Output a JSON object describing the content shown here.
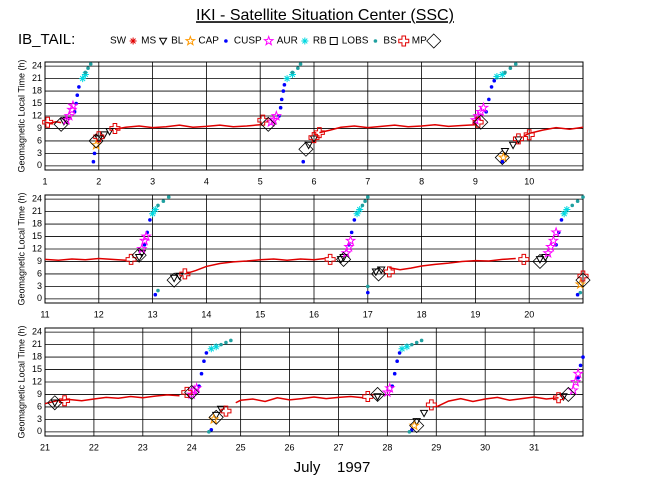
{
  "title": "IKI - Satellite Situation Center (SSC)",
  "subtitle": "IB_TAIL:",
  "xlabel": "July    1997",
  "legend": [
    {
      "name": "SW",
      "color": "#e00000",
      "marker": "asterisk",
      "line": true
    },
    {
      "name": "MS",
      "color": "#000000",
      "marker": "triangle"
    },
    {
      "name": "BL",
      "color": "#ff9900",
      "marker": "star"
    },
    {
      "name": "CAP",
      "color": "#0000ff",
      "marker": "dot"
    },
    {
      "name": "CUSP",
      "color": "#ff00ff",
      "marker": "star"
    },
    {
      "name": "AUR",
      "color": "#00d8e0",
      "marker": "asterisk"
    },
    {
      "name": "RB",
      "color": "#000000",
      "marker": "square"
    },
    {
      "name": "LOBS",
      "color": "#20a0a0",
      "marker": "dot"
    },
    {
      "name": "BS",
      "color": "#e00000",
      "marker": "cross"
    },
    {
      "name": "MP",
      "color": "#000000",
      "marker": "diamond"
    }
  ],
  "chart_data": [
    {
      "type": "scatter",
      "ylabel": "Geomagnetic Local Time (h)",
      "xlim": [
        1,
        11
      ],
      "xticks": [
        1,
        2,
        3,
        4,
        5,
        6,
        7,
        8,
        9,
        10
      ],
      "ylim": [
        -1,
        25
      ],
      "yticks": [
        0,
        3,
        6,
        9,
        12,
        15,
        18,
        21,
        24
      ],
      "grid": true,
      "series": [
        {
          "x": [
            1.0,
            1.1,
            1.2,
            1.3,
            null,
            2.3,
            2.5,
            2.75,
            3.0,
            3.25,
            3.5,
            3.75,
            4.0,
            4.25,
            4.5,
            4.75,
            5.0,
            null,
            6.1,
            6.3,
            6.5,
            6.75,
            7.0,
            7.25,
            7.5,
            7.75,
            8.0,
            8.25,
            8.5,
            8.75,
            9.0,
            null,
            9.9,
            10.0,
            10.25,
            10.5,
            10.75,
            11.0
          ],
          "values": [
            10.5,
            10.3,
            10.6,
            10.4,
            null,
            8.8,
            9.3,
            9.6,
            9.2,
            9.4,
            9.8,
            9.3,
            9.5,
            9.8,
            9.4,
            9.6,
            9.9,
            null,
            8.0,
            8.6,
            9.3,
            9.6,
            9.2,
            9.5,
            9.8,
            9.4,
            9.6,
            9.9,
            9.5,
            9.7,
            9.9,
            null,
            7.2,
            7.8,
            8.6,
            9.2,
            8.8,
            9.3
          ]
        },
        {
          "x": [
            1.35,
            1.4,
            2.0,
            2.1,
            2.2,
            5.9,
            6.0,
            9.55,
            9.7,
            9.8
          ],
          "values": [
            10.7,
            11,
            6.5,
            7.5,
            8.3,
            5,
            6.5,
            3.5,
            5,
            6.3
          ]
        },
        {
          "x": [
            1.95,
            9.52
          ],
          "values": [
            5,
            2
          ]
        },
        {
          "x": [
            1.55,
            1.58,
            1.6,
            1.63,
            5.35,
            5.38,
            5.4,
            5.43,
            5.45,
            9.2,
            9.25,
            9.3,
            9.35,
            1.9,
            1.92,
            5.8,
            9.5
          ],
          "values": [
            13,
            15,
            17,
            19,
            12,
            14,
            16,
            18,
            19.5,
            13,
            16,
            19,
            20.5,
            1,
            3,
            1,
            1
          ]
        },
        {
          "x": [
            1.4,
            1.45,
            1.5,
            1.52,
            5.2,
            5.25,
            5.3,
            9.0,
            9.05,
            9.1,
            9.15
          ],
          "values": [
            11,
            12,
            13.5,
            14.5,
            10.5,
            11,
            12,
            11,
            12,
            13,
            14
          ]
        },
        {
          "x": [
            1.7,
            1.75,
            5.5,
            5.6,
            9.4,
            9.5
          ],
          "values": [
            21,
            22,
            21,
            22,
            21.5,
            22
          ]
        },
        {
          "x": [],
          "values": []
        },
        {
          "x": [
            1.75,
            1.8,
            1.85,
            5.6,
            5.7,
            5.75,
            9.55,
            9.65,
            9.75
          ],
          "values": [
            22.5,
            23.5,
            24.5,
            22.5,
            23.5,
            24.5,
            22.5,
            23.5,
            24.5
          ]
        },
        {
          "x": [
            1.05,
            2.0,
            2.3,
            5.05,
            6.0,
            6.1,
            9.05,
            9.8,
            10.0
          ],
          "values": [
            10.5,
            7,
            9,
            11,
            6.8,
            8,
            10.5,
            6.5,
            7.5
          ]
        },
        {
          "x": [
            1.3,
            1.95,
            5.15,
            5.85,
            9.1,
            9.5
          ],
          "values": [
            10,
            6,
            10,
            4,
            10.5,
            2
          ]
        }
      ]
    },
    {
      "type": "scatter",
      "ylabel": "Geomagnetic Local Time (h)",
      "xlim": [
        11,
        21
      ],
      "xticks": [
        11,
        12,
        13,
        14,
        15,
        16,
        17,
        18,
        19,
        20
      ],
      "ylim": [
        -1,
        25
      ],
      "yticks": [
        0,
        3,
        6,
        9,
        12,
        15,
        18,
        21,
        24
      ],
      "grid": true,
      "series": [
        {
          "x": [
            11.0,
            11.25,
            11.5,
            11.75,
            12.0,
            12.25,
            12.5,
            null,
            13.6,
            13.8,
            14.0,
            14.25,
            14.5,
            14.75,
            15.0,
            15.25,
            15.5,
            15.75,
            16.0,
            16.2,
            null,
            17.4,
            17.6,
            17.8,
            18.0,
            18.25,
            18.5,
            18.75,
            19.0,
            19.25,
            19.5,
            19.75
          ],
          "values": [
            9.5,
            9.3,
            9.6,
            9.4,
            9.7,
            9.5,
            9.3,
            null,
            6.0,
            6.8,
            7.8,
            8.5,
            8.9,
            9.1,
            9.4,
            9.6,
            9.3,
            9.6,
            9.4,
            9.7,
            null,
            7.5,
            7.0,
            7.4,
            7.9,
            8.3,
            8.6,
            9.0,
            9.2,
            9.1,
            9.5,
            9.7
          ]
        },
        {
          "x": [
            12.75,
            12.8,
            13.4,
            13.5,
            16.5,
            16.55,
            17.15,
            17.25,
            20.2,
            20.3
          ],
          "values": [
            10,
            11,
            5,
            5.5,
            9.5,
            10,
            6.5,
            7,
            9.5,
            10
          ]
        },
        {
          "x": [
            20.95
          ],
          "values": [
            3.5
          ]
        },
        {
          "x": [
            12.85,
            12.9,
            12.95,
            16.65,
            16.7,
            16.75,
            20.5,
            20.55,
            20.6,
            13.05,
            17.0,
            20.9
          ],
          "values": [
            13,
            16,
            19,
            13,
            16,
            19,
            13,
            16,
            19,
            1,
            1.5,
            1
          ]
        },
        {
          "x": [
            12.8,
            12.85,
            12.88,
            16.6,
            16.65,
            16.68,
            20.35,
            20.4,
            20.45,
            20.5
          ],
          "values": [
            12,
            14,
            15,
            11,
            12.5,
            14,
            11,
            12.5,
            14,
            16
          ]
        },
        {
          "x": [
            13.0,
            13.05,
            16.8,
            16.85,
            20.65,
            20.7
          ],
          "values": [
            20.5,
            21.5,
            20.5,
            21.5,
            20.5,
            21.5
          ]
        },
        {
          "x": [],
          "values": []
        },
        {
          "x": [
            13.1,
            13.2,
            13.3,
            16.9,
            16.95,
            17.0,
            20.8,
            20.9,
            21.0,
            13.1,
            17.0,
            20.95
          ],
          "values": [
            22.5,
            23.5,
            24.5,
            22.5,
            23.5,
            24.5,
            22.5,
            23.5,
            24.5,
            2,
            3,
            1.5
          ]
        },
        {
          "x": [
            12.6,
            13.6,
            16.3,
            17.4,
            19.9,
            21.0
          ],
          "values": [
            9.5,
            6,
            9.5,
            6.5,
            9.5,
            5.5
          ]
        },
        {
          "x": [
            12.75,
            13.4,
            16.55,
            17.2,
            20.2,
            21.0
          ],
          "values": [
            10.5,
            4.5,
            9.5,
            6,
            9,
            4.5
          ]
        }
      ]
    },
    {
      "type": "scatter",
      "ylabel": "Geomagnetic Local Time (h)",
      "xlim": [
        21,
        32
      ],
      "xticks": [
        21,
        22,
        23,
        24,
        25,
        26,
        27,
        28,
        29,
        30,
        31
      ],
      "ylim": [
        -1,
        25
      ],
      "yticks": [
        0,
        3,
        6,
        9,
        12,
        15,
        18,
        21,
        24
      ],
      "grid": true,
      "series": [
        {
          "x": [
            21.0,
            21.25,
            21.5,
            21.75,
            22.0,
            22.25,
            22.5,
            22.75,
            23.0,
            23.25,
            23.5,
            23.75,
            null,
            24.9,
            25.0,
            25.25,
            25.5,
            25.75,
            26.0,
            26.25,
            26.5,
            26.75,
            27.0,
            27.25,
            27.5,
            null,
            29.0,
            29.25,
            29.5,
            29.75,
            30.0,
            30.25,
            30.5,
            30.75,
            31.0,
            31.25,
            31.5
          ],
          "values": [
            6.8,
            7.5,
            7.8,
            7.5,
            7.9,
            8.3,
            8.1,
            8.5,
            8.2,
            8.6,
            8.9,
            8.7,
            null,
            7.0,
            7.6,
            7.9,
            7.3,
            8.2,
            7.7,
            8.0,
            8.4,
            8.0,
            8.3,
            8.5,
            8.2,
            null,
            6.0,
            7.4,
            8.0,
            7.3,
            7.9,
            8.3,
            7.6,
            8.0,
            8.4,
            7.9,
            8.2
          ]
        },
        {
          "x": [
            21.2,
            24.5,
            24.6,
            27.8,
            28.6,
            28.75,
            31.6
          ],
          "values": [
            7,
            4,
            5.5,
            8.5,
            2.5,
            4.5,
            8.5
          ]
        },
        {
          "x": [
            24.45,
            28.55
          ],
          "values": [
            3,
            1.5
          ]
        },
        {
          "x": [
            24.15,
            24.2,
            24.25,
            24.3,
            28.1,
            28.15,
            28.2,
            28.25,
            31.9,
            31.95,
            32.0,
            24.4,
            28.5
          ],
          "values": [
            11,
            14,
            17,
            19,
            11,
            14,
            17,
            19,
            13,
            16,
            18,
            0.5,
            0.5
          ]
        },
        {
          "x": [
            24.0,
            24.05,
            24.1,
            28.0,
            28.05,
            31.8,
            31.85,
            31.9
          ],
          "values": [
            9,
            10,
            10.5,
            9.5,
            10.5,
            10,
            12,
            14
          ]
        },
        {
          "x": [
            24.4,
            24.5,
            28.3,
            28.4
          ],
          "values": [
            20,
            20.5,
            20,
            20.5
          ]
        },
        {
          "x": [],
          "values": []
        },
        {
          "x": [
            24.6,
            24.7,
            24.8,
            28.5,
            28.6,
            28.7,
            24.35,
            28.45
          ],
          "values": [
            21,
            21.5,
            22,
            21,
            21.5,
            22,
            0,
            0
          ]
        },
        {
          "x": [
            21.4,
            23.9,
            24.7,
            27.6,
            28.9,
            31.5
          ],
          "values": [
            7.5,
            9.5,
            5,
            8.5,
            6.5,
            8.2
          ]
        },
        {
          "x": [
            21.2,
            24.0,
            24.5,
            27.8,
            28.6,
            31.7
          ],
          "values": [
            7,
            9.5,
            3.5,
            9,
            1.5,
            9
          ]
        }
      ]
    }
  ]
}
